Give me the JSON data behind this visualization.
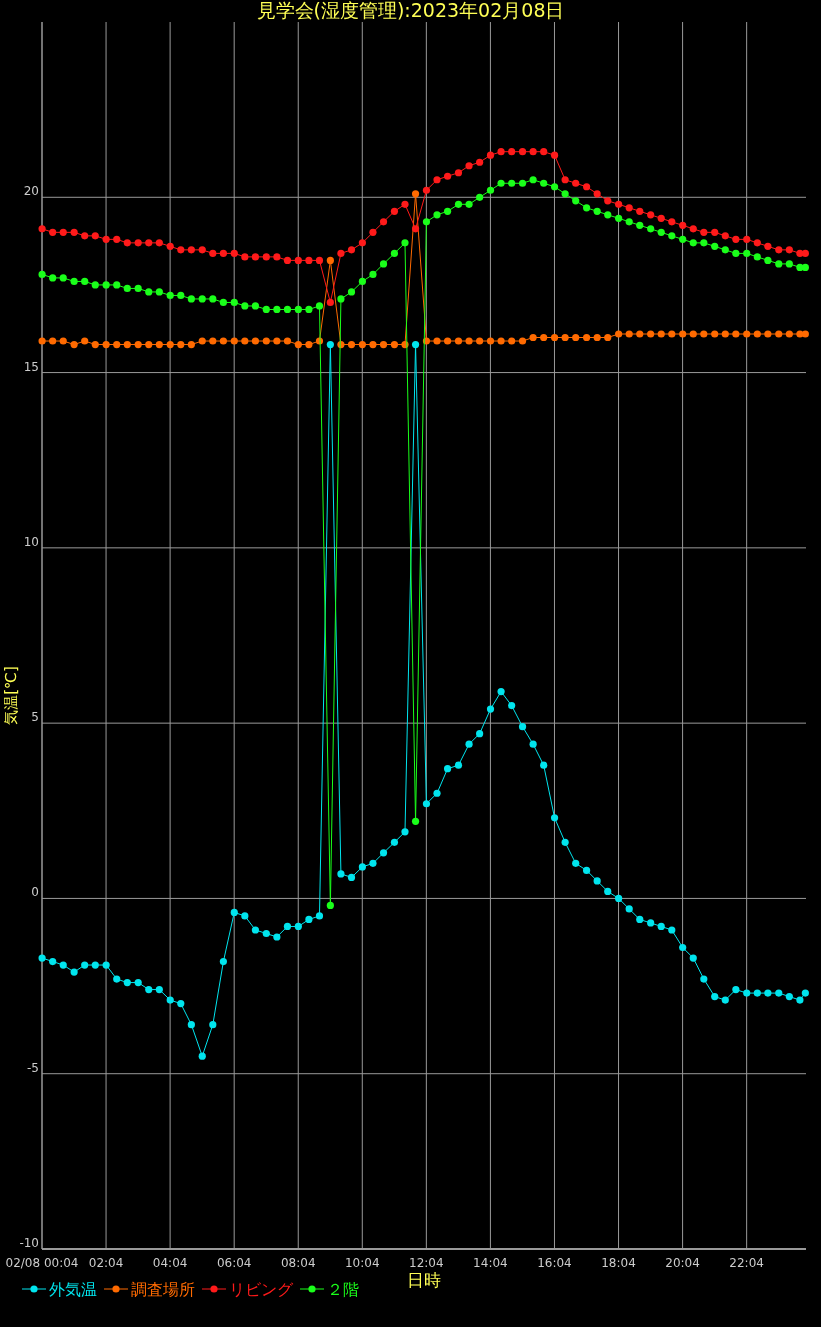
{
  "chart_data": {
    "type": "line",
    "title": "見学会(湿度管理):2023年02月08日",
    "xlabel": "日時",
    "ylabel": "気温[℃]",
    "x": [
      0.07,
      0.4,
      0.73,
      1.07,
      1.4,
      1.73,
      2.07,
      2.4,
      2.73,
      3.07,
      3.4,
      3.73,
      4.07,
      4.4,
      4.73,
      5.07,
      5.4,
      5.73,
      6.07,
      6.4,
      6.73,
      7.07,
      7.4,
      7.73,
      8.07,
      8.4,
      8.73,
      9.07,
      9.4,
      9.73,
      10.07,
      10.4,
      10.73,
      11.07,
      11.4,
      11.73,
      12.07,
      12.4,
      12.73,
      13.07,
      13.4,
      13.73,
      14.07,
      14.4,
      14.73,
      15.07,
      15.4,
      15.73,
      16.07,
      16.4,
      16.73,
      17.07,
      17.4,
      17.73,
      18.07,
      18.4,
      18.73,
      19.07,
      19.4,
      19.73,
      20.07,
      20.4,
      20.73,
      21.07,
      21.4,
      21.73,
      22.07,
      22.4,
      22.73,
      23.07,
      23.4,
      23.73,
      23.9
    ],
    "series": [
      {
        "name": "外気温",
        "color": "#00e5ee",
        "values": [
          -1.7,
          -1.8,
          -1.9,
          -2.1,
          -1.9,
          -1.9,
          -1.9,
          -2.3,
          -2.4,
          -2.4,
          -2.6,
          -2.6,
          -2.9,
          -3.0,
          -3.6,
          -4.5,
          -3.6,
          -1.8,
          -0.4,
          -0.5,
          -0.9,
          -1.0,
          -1.1,
          -0.8,
          -0.8,
          -0.6,
          -0.5,
          15.8,
          0.7,
          0.6,
          0.9,
          1.0,
          1.3,
          1.6,
          1.9,
          15.8,
          2.7,
          3.0,
          3.7,
          3.8,
          4.4,
          4.7,
          5.4,
          5.9,
          5.5,
          4.9,
          4.4,
          3.8,
          2.3,
          1.6,
          1.0,
          0.8,
          0.5,
          0.2,
          0.0,
          -0.3,
          -0.6,
          -0.7,
          -0.8,
          -0.9,
          -1.4,
          -1.7,
          -2.3,
          -2.8,
          -2.9,
          -2.6,
          -2.7,
          -2.7,
          -2.7,
          -2.7,
          -2.8,
          -2.9,
          -2.7
        ]
      },
      {
        "name": "調査場所",
        "color": "#ff6a00",
        "values": [
          15.9,
          15.9,
          15.9,
          15.8,
          15.9,
          15.8,
          15.8,
          15.8,
          15.8,
          15.8,
          15.8,
          15.8,
          15.8,
          15.8,
          15.8,
          15.9,
          15.9,
          15.9,
          15.9,
          15.9,
          15.9,
          15.9,
          15.9,
          15.9,
          15.8,
          15.8,
          15.9,
          18.2,
          15.8,
          15.8,
          15.8,
          15.8,
          15.8,
          15.8,
          15.8,
          20.1,
          15.9,
          15.9,
          15.9,
          15.9,
          15.9,
          15.9,
          15.9,
          15.9,
          15.9,
          15.9,
          16.0,
          16.0,
          16.0,
          16.0,
          16.0,
          16.0,
          16.0,
          16.0,
          16.1,
          16.1,
          16.1,
          16.1,
          16.1,
          16.1,
          16.1,
          16.1,
          16.1,
          16.1,
          16.1,
          16.1,
          16.1,
          16.1,
          16.1,
          16.1,
          16.1,
          16.1,
          16.1
        ]
      },
      {
        "name": "リビング",
        "color": "#ff1a1a",
        "values": [
          19.1,
          19.0,
          19.0,
          19.0,
          18.9,
          18.9,
          18.8,
          18.8,
          18.7,
          18.7,
          18.7,
          18.7,
          18.6,
          18.5,
          18.5,
          18.5,
          18.4,
          18.4,
          18.4,
          18.3,
          18.3,
          18.3,
          18.3,
          18.2,
          18.2,
          18.2,
          18.2,
          17.0,
          18.4,
          18.5,
          18.7,
          19.0,
          19.3,
          19.6,
          19.8,
          19.1,
          20.2,
          20.5,
          20.6,
          20.7,
          20.9,
          21.0,
          21.2,
          21.3,
          21.3,
          21.3,
          21.3,
          21.3,
          21.2,
          20.5,
          20.4,
          20.3,
          20.1,
          19.9,
          19.8,
          19.7,
          19.6,
          19.5,
          19.4,
          19.3,
          19.2,
          19.1,
          19.0,
          19.0,
          18.9,
          18.8,
          18.8,
          18.7,
          18.6,
          18.5,
          18.5,
          18.4,
          18.4
        ]
      },
      {
        "name": "２階",
        "color": "#1aff1a",
        "values": [
          17.8,
          17.7,
          17.7,
          17.6,
          17.6,
          17.5,
          17.5,
          17.5,
          17.4,
          17.4,
          17.3,
          17.3,
          17.2,
          17.2,
          17.1,
          17.1,
          17.1,
          17.0,
          17.0,
          16.9,
          16.9,
          16.8,
          16.8,
          16.8,
          16.8,
          16.8,
          16.9,
          -0.2,
          17.1,
          17.3,
          17.6,
          17.8,
          18.1,
          18.4,
          18.7,
          2.2,
          19.3,
          19.5,
          19.6,
          19.8,
          19.8,
          20.0,
          20.2,
          20.4,
          20.4,
          20.4,
          20.5,
          20.4,
          20.3,
          20.1,
          19.9,
          19.7,
          19.6,
          19.5,
          19.4,
          19.3,
          19.2,
          19.1,
          19.0,
          18.9,
          18.8,
          18.7,
          18.7,
          18.6,
          18.5,
          18.4,
          18.4,
          18.3,
          18.2,
          18.1,
          18.1,
          18.0,
          18.0
        ]
      }
    ],
    "xlim": [
      0.067,
      23.92
    ],
    "ylim": [
      -10,
      25
    ],
    "xticks": [
      {
        "value": 0.067,
        "label": "02/08 00:04"
      },
      {
        "value": 2.067,
        "label": "02:04"
      },
      {
        "value": 4.067,
        "label": "04:04"
      },
      {
        "value": 6.067,
        "label": "06:04"
      },
      {
        "value": 8.067,
        "label": "08:04"
      },
      {
        "value": 10.067,
        "label": "10:04"
      },
      {
        "value": 12.067,
        "label": "12:04"
      },
      {
        "value": 14.067,
        "label": "14:04"
      },
      {
        "value": 16.067,
        "label": "16:04"
      },
      {
        "value": 18.067,
        "label": "18:04"
      },
      {
        "value": 20.067,
        "label": "20:04"
      },
      {
        "value": 22.067,
        "label": "22:04"
      }
    ],
    "yticks": [
      -10,
      -5,
      0,
      5,
      10,
      15,
      20
    ],
    "grid": true,
    "legend": "bottom left",
    "marker": "circle",
    "line_style": "solid"
  }
}
